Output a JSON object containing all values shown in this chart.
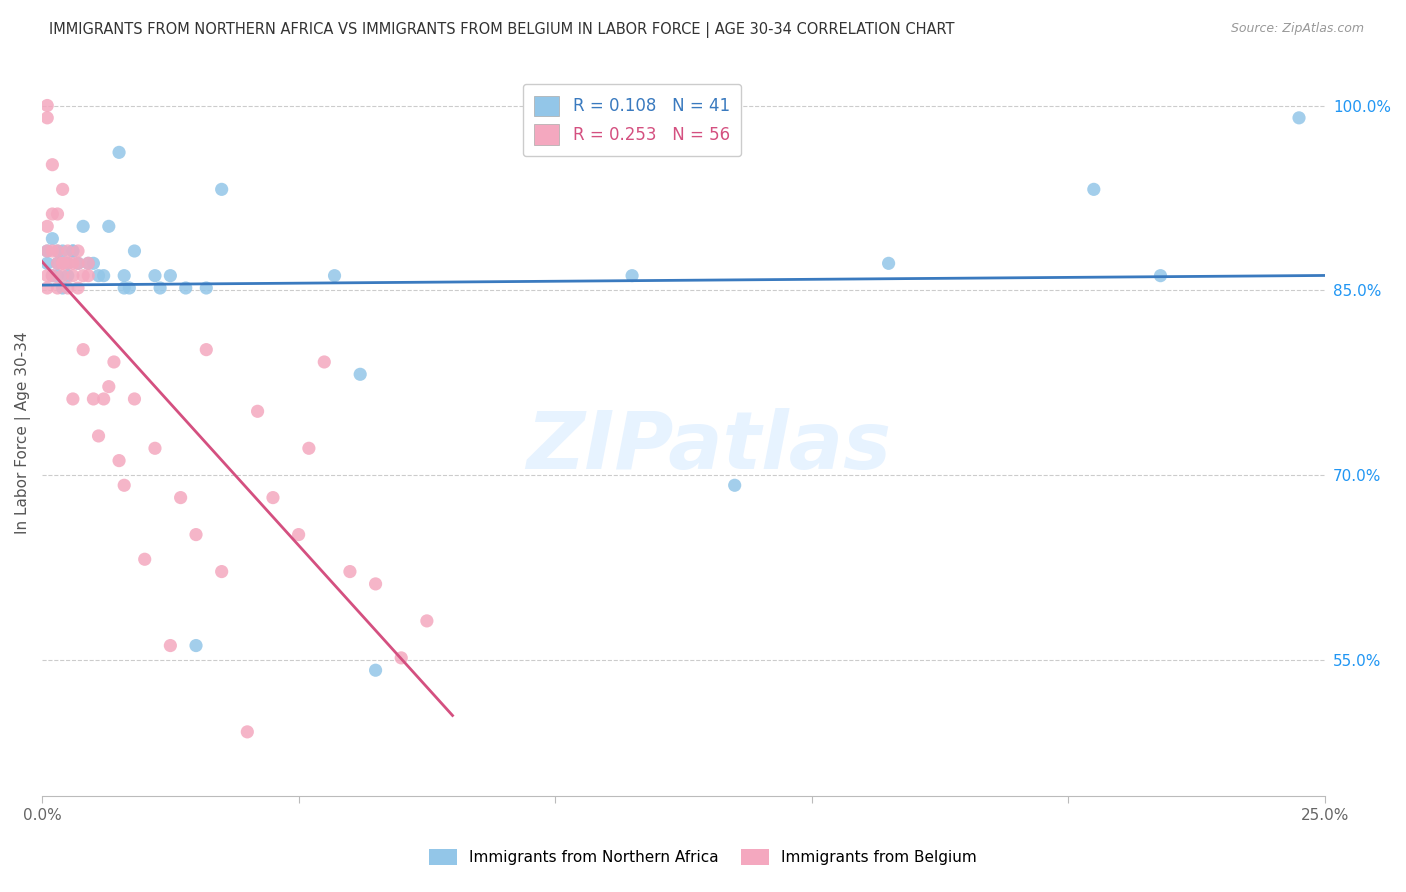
{
  "title": "IMMIGRANTS FROM NORTHERN AFRICA VS IMMIGRANTS FROM BELGIUM IN LABOR FORCE | AGE 30-34 CORRELATION CHART",
  "source": "Source: ZipAtlas.com",
  "ylabel": "In Labor Force | Age 30-34",
  "xlim": [
    0.0,
    0.25
  ],
  "ylim": [
    0.44,
    1.03
  ],
  "right_yticks": [
    1.0,
    0.85,
    0.7,
    0.55
  ],
  "right_yticklabels": [
    "100.0%",
    "85.0%",
    "70.0%",
    "55.0%"
  ],
  "xtick_positions": [
    0.0,
    0.05,
    0.1,
    0.15,
    0.2,
    0.25
  ],
  "xticklabels_show": [
    "0.0%",
    "",
    "",
    "",
    "",
    "25.0%"
  ],
  "legend_blue_label": "Immigrants from Northern Africa",
  "legend_pink_label": "Immigrants from Belgium",
  "R_blue": 0.108,
  "N_blue": 41,
  "R_pink": 0.253,
  "N_pink": 56,
  "blue_color": "#93c6e8",
  "pink_color": "#f4a8bf",
  "blue_line_color": "#3a7abf",
  "pink_line_color": "#d45080",
  "watermark_text": "ZIPatlas",
  "blue_points_x": [
    0.001,
    0.001,
    0.002,
    0.002,
    0.003,
    0.003,
    0.003,
    0.004,
    0.004,
    0.005,
    0.005,
    0.006,
    0.006,
    0.007,
    0.008,
    0.009,
    0.01,
    0.011,
    0.012,
    0.013,
    0.015,
    0.016,
    0.016,
    0.017,
    0.018,
    0.022,
    0.023,
    0.025,
    0.028,
    0.03,
    0.032,
    0.035,
    0.057,
    0.062,
    0.065,
    0.115,
    0.135,
    0.165,
    0.205,
    0.218,
    0.245
  ],
  "blue_points_y": [
    0.882,
    0.872,
    0.862,
    0.892,
    0.882,
    0.862,
    0.872,
    0.882,
    0.852,
    0.872,
    0.862,
    0.882,
    0.882,
    0.872,
    0.902,
    0.872,
    0.872,
    0.862,
    0.862,
    0.902,
    0.962,
    0.852,
    0.862,
    0.852,
    0.882,
    0.862,
    0.852,
    0.862,
    0.852,
    0.562,
    0.852,
    0.932,
    0.862,
    0.782,
    0.542,
    0.862,
    0.692,
    0.872,
    0.932,
    0.862,
    0.99
  ],
  "pink_points_x": [
    0.001,
    0.001,
    0.001,
    0.001,
    0.001,
    0.001,
    0.002,
    0.002,
    0.002,
    0.002,
    0.003,
    0.003,
    0.003,
    0.003,
    0.004,
    0.004,
    0.004,
    0.004,
    0.005,
    0.005,
    0.005,
    0.006,
    0.006,
    0.006,
    0.007,
    0.007,
    0.007,
    0.008,
    0.008,
    0.009,
    0.009,
    0.01,
    0.011,
    0.012,
    0.013,
    0.014,
    0.015,
    0.016,
    0.018,
    0.02,
    0.022,
    0.025,
    0.027,
    0.03,
    0.032,
    0.035,
    0.04,
    0.042,
    0.045,
    0.05,
    0.052,
    0.055,
    0.06,
    0.065,
    0.07,
    0.075
  ],
  "pink_points_y": [
    0.882,
    0.862,
    0.852,
    0.902,
    0.99,
    1.0,
    0.882,
    0.862,
    0.912,
    0.952,
    0.882,
    0.872,
    0.912,
    0.852,
    0.872,
    0.932,
    0.872,
    0.862,
    0.882,
    0.872,
    0.852,
    0.872,
    0.862,
    0.762,
    0.882,
    0.872,
    0.852,
    0.862,
    0.802,
    0.872,
    0.862,
    0.762,
    0.732,
    0.762,
    0.772,
    0.792,
    0.712,
    0.692,
    0.762,
    0.632,
    0.722,
    0.562,
    0.682,
    0.652,
    0.802,
    0.622,
    0.492,
    0.752,
    0.682,
    0.652,
    0.722,
    0.792,
    0.622,
    0.612,
    0.552,
    0.582
  ]
}
